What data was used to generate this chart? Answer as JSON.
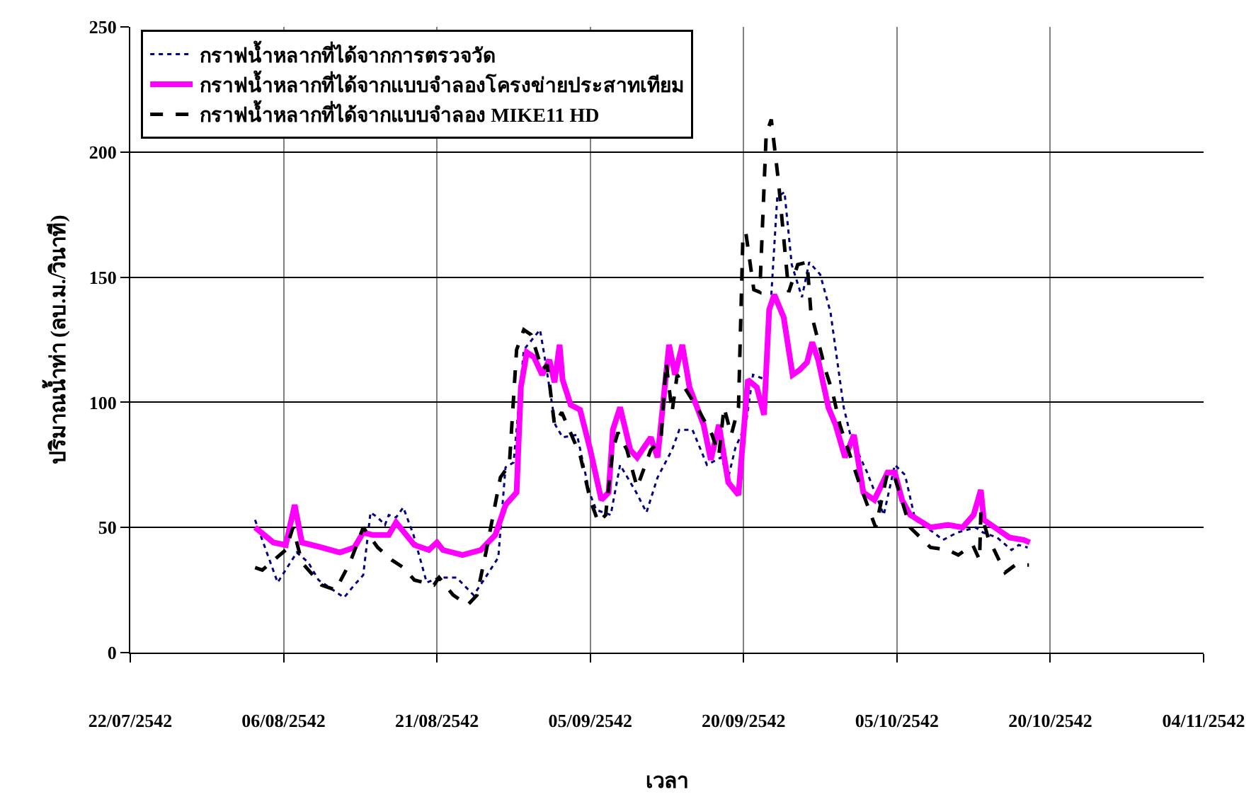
{
  "chart_data": {
    "type": "line",
    "xlabel": "เวลา",
    "ylabel": "ปริมาณน้ำท่า (ลบ.ม./วินาที)",
    "xlim": [
      "2542-07-22",
      "2542-11-04"
    ],
    "xticks": [
      {
        "value": "2542-07-22",
        "label": "22/07/2542"
      },
      {
        "value": "2542-08-06",
        "label": "06/08/2542"
      },
      {
        "value": "2542-08-21",
        "label": "21/08/2542"
      },
      {
        "value": "2542-09-05",
        "label": "05/09/2542"
      },
      {
        "value": "2542-09-20",
        "label": "20/09/2542"
      },
      {
        "value": "2542-10-05",
        "label": "05/10/2542"
      },
      {
        "value": "2542-10-20",
        "label": "20/10/2542"
      },
      {
        "value": "2542-11-04",
        "label": "04/11/2542"
      }
    ],
    "ylim": [
      0,
      250
    ],
    "yticks": [
      0,
      50,
      100,
      150,
      200,
      250
    ],
    "grid": true,
    "legend": "top left",
    "marker": "none",
    "series": [
      {
        "name": "กราฟน้ำหลากที่ได้จากการตรวจวัด",
        "color": "#000080",
        "line_style": "dotted",
        "x": [
          "2542-08-03T05:00",
          "2542-08-05T10:00",
          "2542-08-07T07:00",
          "2542-08-08T10:00",
          "2542-08-09T10:00",
          "2542-08-11T22:00",
          "2542-08-12T22:00",
          "2542-08-13T19:00",
          "2542-08-14T12:00",
          "2542-08-15T05:00",
          "2542-08-15T22:00",
          "2542-08-16T07:00",
          "2542-08-17T00:00",
          "2542-08-17T17:00",
          "2542-08-18T17:00",
          "2542-08-20T00:00",
          "2542-08-21T05:00",
          "2542-08-22T22:00",
          "2542-08-24T14:00",
          "2542-08-25T14:00",
          "2542-08-27T00:00",
          "2542-08-27T17:00",
          "2542-08-28T12:00",
          "2542-08-29T12:00",
          "2542-08-31T02:00",
          "2542-08-31T12:00",
          "2542-09-01T14:00",
          "2542-09-02T07:00",
          "2542-09-03T17:00",
          "2542-09-04T22:00",
          "2542-09-05T14:00",
          "2542-09-07T00:00",
          "2542-09-07T22:00",
          "2542-09-09T12:00",
          "2542-09-10T12:00",
          "2542-09-11T14:00",
          "2542-09-13T00:00",
          "2542-09-13T17:00",
          "2542-09-15T00:00",
          "2542-09-16T10:00",
          "2542-09-17T19:00",
          "2542-09-18T12:00",
          "2542-09-19T05:00",
          "2542-09-20T05:00",
          "2542-09-20T22:00",
          "2542-09-22T05:00",
          "2542-09-23T07:00",
          "2542-09-24T00:00",
          "2542-09-24T17:00",
          "2542-09-25T17:00",
          "2542-09-26T10:00",
          "2542-09-27T12:00",
          "2542-09-28T12:00",
          "2542-09-29T19:00",
          "2542-09-30T12:00",
          "2542-10-02T02:00",
          "2542-10-03T17:00",
          "2542-10-04T19:00",
          "2542-10-05T19:00",
          "2542-10-06T19:00",
          "2542-10-08T14:00",
          "2542-10-09T12:00",
          "2542-10-10T22:00",
          "2542-10-12T17:00",
          "2542-10-13T10:00",
          "2542-10-14T19:00",
          "2542-10-16T05:00",
          "2542-10-16T22:00",
          "2542-10-17T19:00"
        ],
        "values": [
          53,
          28,
          40,
          36,
          29,
          22,
          27,
          31,
          56,
          54,
          51,
          55,
          54,
          58,
          47,
          28,
          30,
          30,
          23,
          29,
          38,
          74,
          76,
          121,
          129,
          119,
          91,
          86,
          87,
          64,
          57,
          55,
          75,
          64,
          56,
          70,
          81,
          89,
          89,
          75,
          78,
          70,
          82,
          91,
          111,
          109,
          182,
          184,
          155,
          142,
          156,
          151,
          136,
          98,
          86,
          72,
          55,
          75,
          71,
          53,
          48,
          45,
          48,
          50,
          48,
          46,
          41,
          43,
          42
        ]
      },
      {
        "name": "กราฟน้ำหลากที่ได้จากแบบจำลองโครงข่ายประสาทเทียม",
        "color": "#ff00ff",
        "line_style": "solid",
        "x": [
          "2542-08-03T05:00",
          "2542-08-05T00:00",
          "2542-08-06T05:00",
          "2542-08-07T02:00",
          "2542-08-07T19:00",
          "2542-08-09T17:00",
          "2542-08-11T12:00",
          "2542-08-12T22:00",
          "2542-08-13T19:00",
          "2542-08-14T17:00",
          "2542-08-16T07:00",
          "2542-08-17T00:00",
          "2542-08-18T00:00",
          "2542-08-18T19:00",
          "2542-08-20T05:00",
          "2542-08-21T00:00",
          "2542-08-21T14:00",
          "2542-08-23T12:00",
          "2542-08-25T07:00",
          "2542-08-26T17:00",
          "2542-08-27T17:00",
          "2542-08-28T19:00",
          "2542-08-29T05:00",
          "2542-08-29T19:00",
          "2542-08-30T12:00",
          "2542-08-31T07:00",
          "2542-09-01T00:00",
          "2542-09-01T12:00",
          "2542-09-02T00:00",
          "2542-09-02T07:00",
          "2542-09-03T02:00",
          "2542-09-04T00:00",
          "2542-09-05T00:00",
          "2542-09-06T02:00",
          "2542-09-06T19:00",
          "2542-09-07T05:00",
          "2542-09-07T22:00",
          "2542-09-08T22:00",
          "2542-09-09T14:00",
          "2542-09-10T22:00",
          "2542-09-11T14:00",
          "2542-09-12T17:00",
          "2542-09-13T07:00",
          "2542-09-14T00:00",
          "2542-09-14T17:00",
          "2542-09-16T02:00",
          "2542-09-16T19:00",
          "2542-09-17T14:00",
          "2542-09-18T12:00",
          "2542-09-19T12:00",
          "2542-09-20T10:00",
          "2542-09-21T07:00",
          "2542-09-22T00:00",
          "2542-09-22T12:00",
          "2542-09-23T00:00",
          "2542-09-23T22:00",
          "2542-09-24T19:00",
          "2542-09-25T12:00",
          "2542-09-26T05:00",
          "2542-09-26T17:00",
          "2542-09-27T07:00",
          "2542-09-28T07:00",
          "2542-09-29T00:00",
          "2542-09-29T22:00",
          "2542-09-30T19:00",
          "2542-10-01T17:00",
          "2542-10-02T19:00",
          "2542-10-04T02:00",
          "2542-10-04T19:00",
          "2542-10-05T12:00",
          "2542-10-06T07:00",
          "2542-10-08T07:00",
          "2542-10-10T00:00",
          "2542-10-11T10:00",
          "2542-10-12T12:00",
          "2542-10-13T05:00",
          "2542-10-13T12:00",
          "2542-10-14T14:00",
          "2542-10-16T00:00",
          "2542-10-17T10:00",
          "2542-10-18T00:00"
        ],
        "values": [
          50,
          44,
          43,
          59,
          44,
          42,
          40,
          42,
          48,
          47,
          47,
          52,
          47,
          43,
          41,
          44,
          41,
          39,
          41,
          47,
          59,
          64,
          106,
          120,
          118,
          111,
          117,
          108,
          123,
          109,
          99,
          97,
          81,
          61,
          64,
          89,
          98,
          81,
          78,
          86,
          78,
          123,
          111,
          123,
          106,
          91,
          77,
          91,
          68,
          63,
          109,
          106,
          95,
          137,
          143,
          134,
          111,
          113,
          116,
          124,
          117,
          98,
          91,
          78,
          87,
          64,
          61,
          72,
          72,
          61,
          55,
          50,
          51,
          50,
          55,
          65,
          53,
          50,
          46,
          45,
          44
        ]
      },
      {
        "name": "กราฟน้ำหลากที่ได้จากแบบจำลอง MIKE11 HD",
        "color": "#000000",
        "line_style": "dashed",
        "x": [
          "2542-08-03T05:00",
          "2542-08-03T22:00",
          "2542-08-06T05:00",
          "2542-08-06T22:00",
          "2542-08-07T19:00",
          "2542-08-09T17:00",
          "2542-08-11T02:00",
          "2542-08-12T12:00",
          "2542-08-13T19:00",
          "2542-08-15T05:00",
          "2542-08-16T14:00",
          "2542-08-17T17:00",
          "2542-08-18T19:00",
          "2542-08-20T17:00",
          "2542-08-21T05:00",
          "2542-08-22T14:00",
          "2542-08-24T00:00",
          "2542-08-24T22:00",
          "2542-08-25T19:00",
          "2542-08-27T05:00",
          "2542-08-28T02:00",
          "2542-08-28T19:00",
          "2542-08-29T12:00",
          "2542-08-30T05:00",
          "2542-08-31T07:00",
          "2542-08-31T19:00",
          "2542-09-01T12:00",
          "2542-09-02T05:00",
          "2542-09-04T00:00",
          "2542-09-05T00:00",
          "2542-09-05T19:00",
          "2542-09-06T12:00",
          "2542-09-07T05:00",
          "2542-09-07T17:00",
          "2542-09-08T14:00",
          "2542-09-09T14:00",
          "2542-09-10T22:00",
          "2542-09-11T22:00",
          "2542-09-12T10:00",
          "2542-09-13T00:00",
          "2542-09-13T12:00",
          "2542-09-14T05:00",
          "2542-09-15T14:00",
          "2542-09-16T22:00",
          "2542-09-17T14:00",
          "2542-09-18T02:00",
          "2542-09-18T19:00",
          "2542-09-19T12:00",
          "2542-09-19T22:00",
          "2542-09-20T05:00",
          "2542-09-21T00:00",
          "2542-09-21T14:00",
          "2542-09-22T05:00",
          "2542-09-22T17:00",
          "2542-09-23T10:00",
          "2542-09-24T10:00",
          "2542-09-25T07:00",
          "2542-09-26T05:00",
          "2542-09-26T14:00",
          "2542-09-28T00:00",
          "2542-09-28T17:00",
          "2542-09-29T10:00",
          "2542-10-01T07:00",
          "2542-10-02T22:00",
          "2542-10-04T02:00",
          "2542-10-04T19:00",
          "2542-10-06T07:00",
          "2542-10-08T07:00",
          "2542-10-10T00:00",
          "2542-10-11T00:00",
          "2542-10-12T10:00",
          "2542-10-13T02:00",
          "2542-10-13T05:00",
          "2542-10-13T22:00",
          "2542-10-15T14:00",
          "2542-10-16T14:00",
          "2542-10-17T22:00"
        ],
        "values": [
          34,
          33,
          41,
          50,
          36,
          27,
          25,
          36,
          50,
          42,
          37,
          34,
          29,
          27,
          30,
          23,
          19,
          23,
          40,
          70,
          75,
          121,
          129,
          127,
          113,
          115,
          91,
          96,
          79,
          61,
          52,
          55,
          81,
          88,
          81,
          66,
          81,
          85,
          116,
          96,
          111,
          106,
          97,
          87,
          79,
          98,
          87,
          98,
          164,
          168,
          145,
          144,
          207,
          213,
          188,
          144,
          155,
          156,
          136,
          113,
          104,
          91,
          68,
          50,
          72,
          70,
          50,
          42,
          41,
          39,
          43,
          37,
          56,
          46,
          32,
          35,
          35
        ]
      }
    ]
  }
}
